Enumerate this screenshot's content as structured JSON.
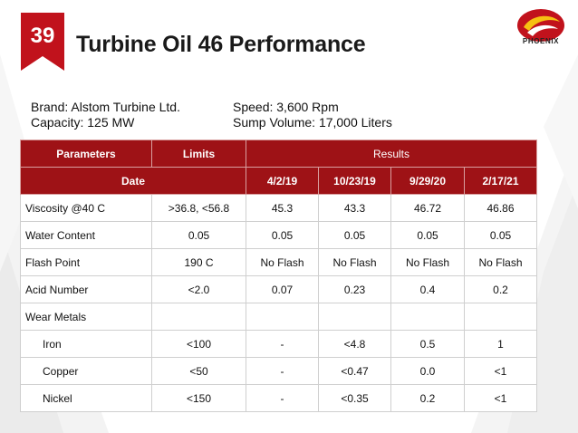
{
  "slide": {
    "number": "39",
    "title": "Turbine Oil 46 Performance",
    "logo_text": "PHOENIX"
  },
  "info": {
    "brand": "Brand: Alstom Turbine Ltd.",
    "capacity": "Capacity: 125 MW",
    "speed": "Speed: 3,600 Rpm",
    "sump_volume": "Sump Volume: 17,000 Liters"
  },
  "table": {
    "header": {
      "parameters": "Parameters",
      "limits": "Limits",
      "results": "Results"
    },
    "date_row": {
      "label": "Date",
      "dates": [
        "4/2/19",
        "10/23/19",
        "9/29/20",
        "2/17/21"
      ]
    },
    "rows": [
      {
        "param": "Viscosity @40 C",
        "limit": ">36.8, <56.8",
        "values": [
          "45.3",
          "43.3",
          "46.72",
          "46.86"
        ]
      },
      {
        "param": "Water Content",
        "limit": "0.05",
        "values": [
          "0.05",
          "0.05",
          "0.05",
          "0.05"
        ]
      },
      {
        "param": "Flash Point",
        "limit": "190 C",
        "values": [
          "No Flash",
          "No Flash",
          "No Flash",
          "No Flash"
        ]
      },
      {
        "param": "Acid Number",
        "limit": "<2.0",
        "values": [
          "0.07",
          "0.23",
          "0.4",
          "0.2"
        ]
      },
      {
        "param": "Wear Metals",
        "limit": "",
        "values": [
          "",
          "",
          "",
          ""
        ]
      },
      {
        "param": "Iron",
        "limit": "<100",
        "values": [
          "-",
          "<4.8",
          "0.5",
          "1"
        ]
      },
      {
        "param": "Copper",
        "limit": "<50",
        "values": [
          "-",
          "<0.47",
          "0.0",
          "<1"
        ]
      },
      {
        "param": "Nickel",
        "limit": "<150",
        "values": [
          "-",
          "<0.35",
          "0.2",
          "<1"
        ]
      }
    ]
  },
  "colors": {
    "accent": "#c1121c",
    "header_bg": "#9e1216",
    "logo_yellow": "#f6c012"
  }
}
